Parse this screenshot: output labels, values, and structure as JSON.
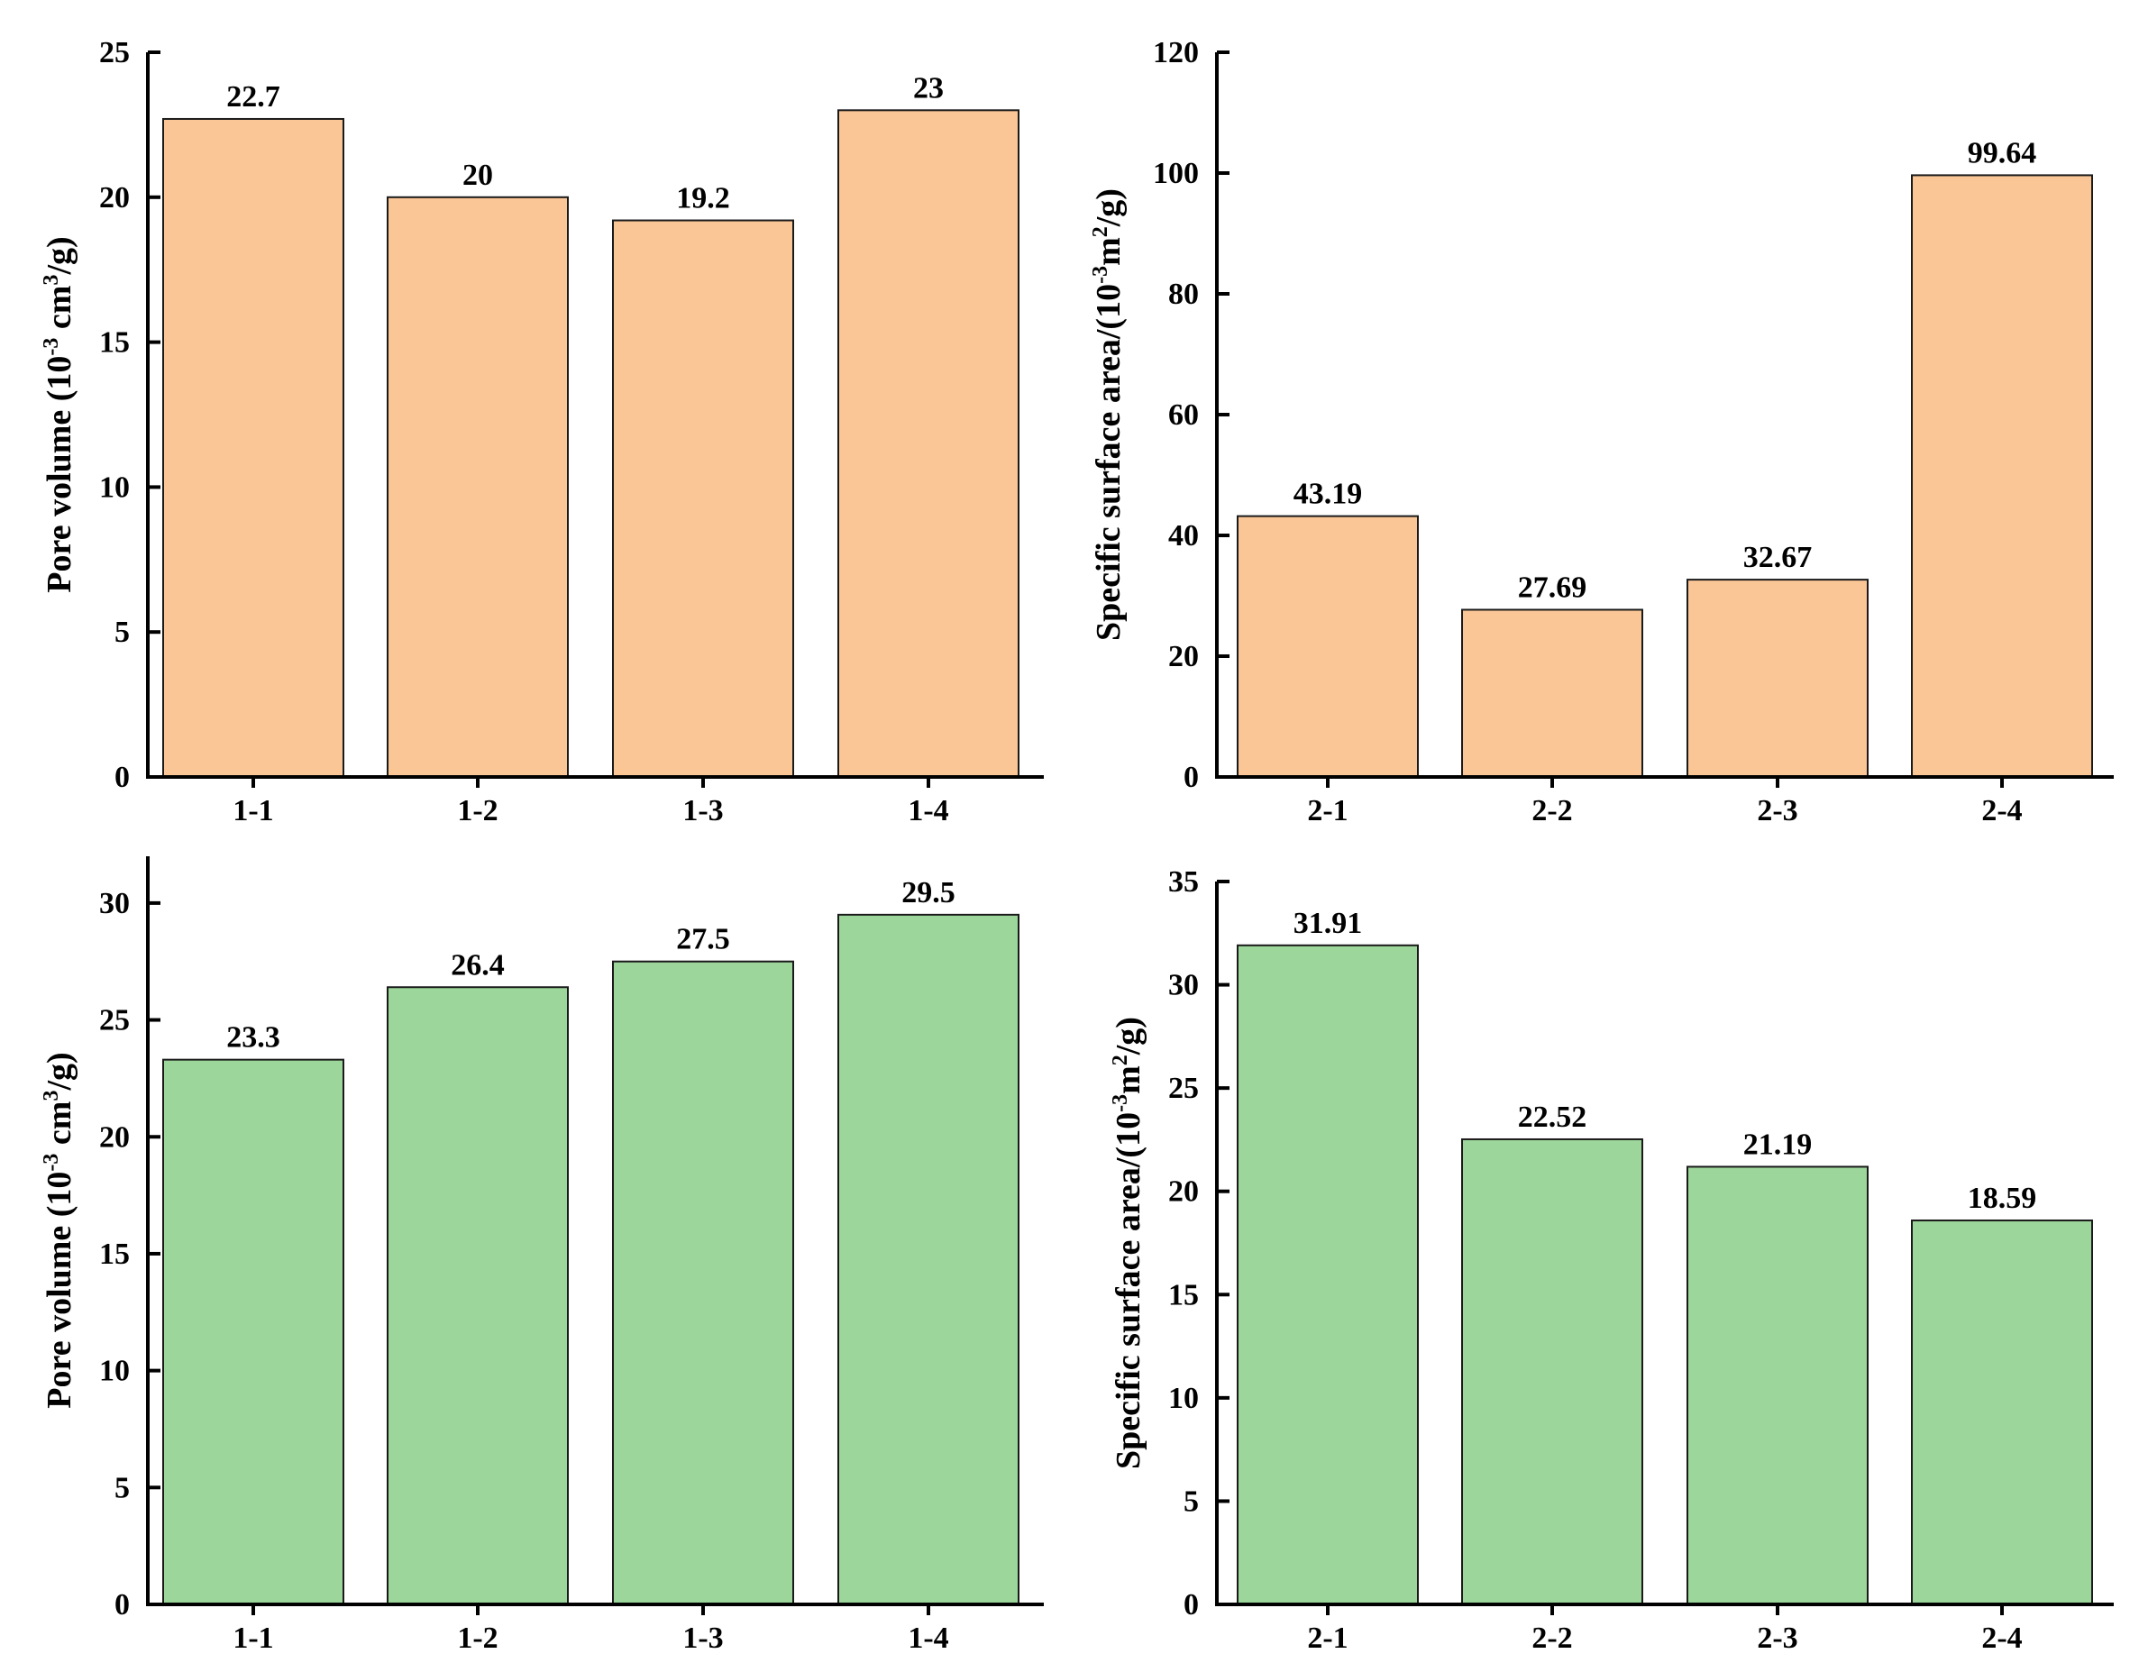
{
  "colors": {
    "orange_fill": "#fac696",
    "green_fill": "#9dd69b",
    "axis": "#000000"
  },
  "chart_data": [
    {
      "type": "bar",
      "panel": "top-left",
      "categories": [
        "1-1",
        "1-2",
        "1-3",
        "1-4"
      ],
      "values": [
        22.7,
        20,
        19.2,
        23
      ],
      "value_labels": [
        "22.7",
        "20",
        "19.2",
        "23"
      ],
      "ylim": [
        0,
        25
      ],
      "yticks": [
        0,
        5,
        10,
        15,
        20,
        25
      ],
      "ylabel": {
        "main": "Pore volume (10",
        "sup1": "-3",
        "mid": " cm",
        "sup2": "3",
        "end": "/g)"
      },
      "color": "orange"
    },
    {
      "type": "bar",
      "panel": "top-right",
      "categories": [
        "2-1",
        "2-2",
        "2-3",
        "2-4"
      ],
      "values": [
        43.19,
        27.69,
        32.67,
        99.64
      ],
      "value_labels": [
        "43.19",
        "27.69",
        "32.67",
        "99.64"
      ],
      "ylim": [
        0,
        120
      ],
      "yticks": [
        0,
        20,
        40,
        60,
        80,
        100,
        120
      ],
      "ylabel": {
        "main": "Specific surface area/(10",
        "sup1": "-3",
        "mid": "m",
        "sup2": "2",
        "end": "/g)"
      },
      "color": "orange"
    },
    {
      "type": "bar",
      "panel": "bottom-left",
      "categories": [
        "1-1",
        "1-2",
        "1-3",
        "1-4"
      ],
      "values": [
        23.3,
        26.4,
        27.5,
        29.5
      ],
      "value_labels": [
        "23.3",
        "26.4",
        "27.5",
        "29.5"
      ],
      "ylim": [
        0,
        32
      ],
      "yticks": [
        0,
        5,
        10,
        15,
        20,
        25,
        30
      ],
      "ylabel": {
        "main": "Pore volume (10",
        "sup1": "-3",
        "mid": " cm",
        "sup2": "3",
        "end": "/g)"
      },
      "color": "green"
    },
    {
      "type": "bar",
      "panel": "bottom-right",
      "categories": [
        "2-1",
        "2-2",
        "2-3",
        "2-4"
      ],
      "values": [
        31.91,
        22.52,
        21.19,
        18.59
      ],
      "value_labels": [
        "31.91",
        "22.52",
        "21.19",
        "18.59"
      ],
      "ylim": [
        0,
        35
      ],
      "yticks": [
        0,
        5,
        10,
        15,
        20,
        25,
        30,
        35
      ],
      "ylabel": {
        "main": "Specific surface area/(10",
        "sup1": "-3",
        "mid": "m",
        "sup2": "2",
        "end": "/g)"
      },
      "color": "green"
    }
  ]
}
